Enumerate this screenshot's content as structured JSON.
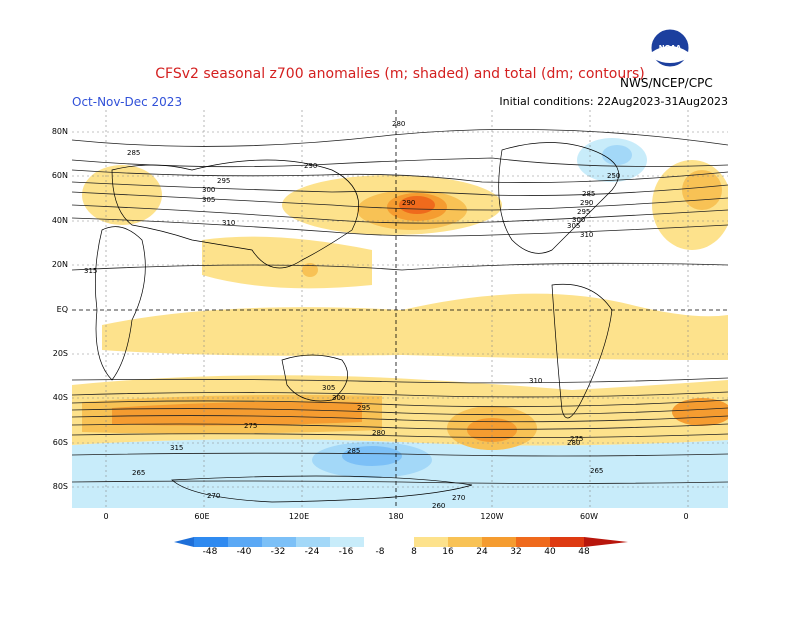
{
  "header": {
    "title": "CFSv2 seasonal z700 anomalies (m; shaded) and total (dm; contours)",
    "season": "Oct-Nov-Dec 2023",
    "agency": "NWS/NCEP/CPC",
    "init": "Initial conditions: 22Aug2023-31Aug2023",
    "logo_text": "NOAA"
  },
  "map": {
    "lat_labels": [
      "80N",
      "60N",
      "40N",
      "20N",
      "EQ",
      "20S",
      "40S",
      "60S",
      "80S"
    ],
    "lon_labels": [
      "0",
      "60E",
      "120E",
      "180",
      "120W",
      "60W",
      "0"
    ],
    "contour_labels": [
      "280",
      "285",
      "290",
      "295",
      "300",
      "305",
      "310",
      "315",
      "270",
      "275",
      "265",
      "250",
      "280",
      "285",
      "290",
      "295",
      "300",
      "305",
      "310",
      "315",
      "280",
      "285",
      "290",
      "295",
      "300",
      "305",
      "310",
      "270",
      "275",
      "265",
      "260"
    ],
    "colors": {
      "neg48": "#1e6fd8",
      "neg40": "#2f8af0",
      "neg32": "#5aa8f5",
      "neg24": "#7cc0f7",
      "neg16": "#a3d8f8",
      "neg8": "#c8ecfa",
      "pos8": "#fde28c",
      "pos16": "#f8c255",
      "pos24": "#f59c30",
      "pos32": "#ef6a1c",
      "pos40": "#de3a12",
      "pos48": "#b8160c"
    }
  },
  "colorbar": {
    "ticks": [
      "-48",
      "-40",
      "-32",
      "-24",
      "-16",
      "-8",
      "8",
      "16",
      "24",
      "32",
      "40",
      "48"
    ]
  }
}
